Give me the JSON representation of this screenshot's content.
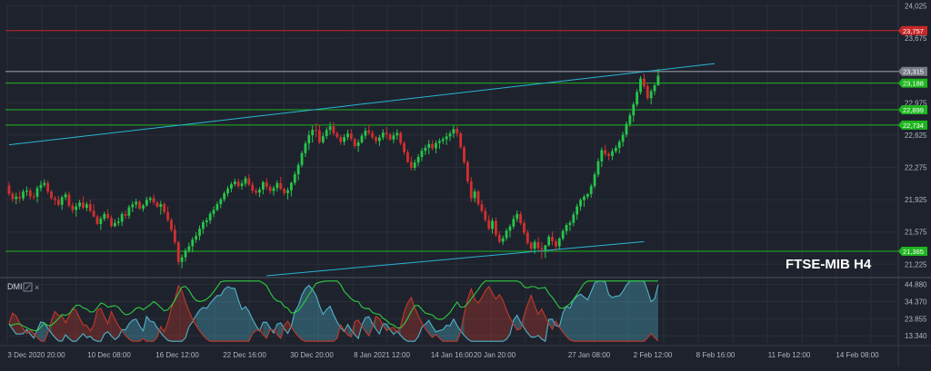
{
  "symbol_label": "FTSE-MIB H4",
  "indicator_label": "DMI",
  "colors": {
    "background": "#1e222d",
    "grid": "#2a2e39",
    "bull": "#26c64a",
    "bear": "#d32f2f",
    "trendline": "#29b6d4",
    "support_resistance": "#1fb51f",
    "resistance_red": "#c62828",
    "dmi_plus": "#4fb3c8",
    "dmi_minus": "#c0392b",
    "adx": "#2ecc40"
  },
  "chart_data": [
    {
      "type": "candlestick",
      "title": "FTSE-MIB H4",
      "x_tick_labels": [
        "3 Dec 2020 20:00",
        "10 Dec 08:00",
        "16 Dec 12:00",
        "22 Dec 16:00",
        "30 Dec 20:00",
        "8 Jan 2021 12:00",
        "14 Jan 16:00",
        "20 Jan 20:00",
        "27 Jan 08:00",
        "2 Feb 12:00",
        "8 Feb 16:00",
        "11 Feb 12:00",
        "14 Feb 08:00"
      ],
      "y_tick_labels": [
        "24,025",
        "23,675",
        "22,975",
        "22,625",
        "22,275",
        "21,925",
        "21,575",
        "21,225"
      ],
      "ylim": [
        21100,
        24050
      ],
      "horizontal_levels": [
        {
          "label": "23,757",
          "value": 23757,
          "color": "red"
        },
        {
          "label": "23,315",
          "value": 23315,
          "color": "grey"
        },
        {
          "label": "23,188",
          "value": 23188,
          "color": "green"
        },
        {
          "label": "22,899",
          "value": 22899,
          "color": "green"
        },
        {
          "label": "22,734",
          "value": 22734,
          "color": "green"
        },
        {
          "label": "21,365",
          "value": 21365,
          "color": "green"
        }
      ],
      "trendlines": [
        {
          "from": {
            "candle": 0,
            "value": 22520
          },
          "to": {
            "candle": 200,
            "value": 23400
          }
        },
        {
          "from": {
            "candle": 73,
            "value": 21100
          },
          "to": {
            "candle": 180,
            "value": 21470
          }
        }
      ],
      "ohlc": [
        [
          22078,
          22118,
          21965,
          21988
        ],
        [
          21988,
          22012,
          21895,
          21932
        ],
        [
          21932,
          22000,
          21876,
          21957
        ],
        [
          21957,
          22018,
          21892,
          21939
        ],
        [
          21939,
          22037,
          21914,
          22011
        ],
        [
          22011,
          22069,
          21964,
          22024
        ],
        [
          22024,
          22050,
          21929,
          21960
        ],
        [
          21960,
          21999,
          21927,
          21957
        ],
        [
          21957,
          22076,
          21894,
          22050
        ],
        [
          22050,
          22129,
          22014,
          22085
        ],
        [
          22085,
          22145,
          22060,
          22106
        ],
        [
          22106,
          22135,
          21985,
          22012
        ],
        [
          22012,
          22029,
          21923,
          21941
        ],
        [
          21941,
          21965,
          21868,
          21924
        ],
        [
          21924,
          21967,
          21853,
          21869
        ],
        [
          21869,
          21971,
          21814,
          21950
        ],
        [
          21950,
          22007,
          21919,
          21982
        ],
        [
          21982,
          22011,
          21840,
          21860
        ],
        [
          21860,
          21896,
          21774,
          21813
        ],
        [
          21813,
          21888,
          21741,
          21853
        ],
        [
          21853,
          21923,
          21819,
          21893
        ],
        [
          21893,
          21960,
          21819,
          21837
        ],
        [
          21837,
          21902,
          21801,
          21875
        ],
        [
          21875,
          21926,
          21785,
          21805
        ],
        [
          21805,
          21874,
          21734,
          21742
        ],
        [
          21742,
          21761,
          21648,
          21661
        ],
        [
          21661,
          21744,
          21596,
          21718
        ],
        [
          21718,
          21796,
          21691,
          21770
        ],
        [
          21770,
          21822,
          21707,
          21727
        ],
        [
          21727,
          21754,
          21622,
          21638
        ],
        [
          21638,
          21713,
          21626,
          21672
        ],
        [
          21672,
          21732,
          21640,
          21687
        ],
        [
          21687,
          21793,
          21640,
          21768
        ],
        [
          21768,
          21808,
          21713,
          21752
        ],
        [
          21752,
          21868,
          21717,
          21843
        ],
        [
          21843,
          21908,
          21790,
          21873
        ],
        [
          21873,
          21935,
          21833,
          21902
        ],
        [
          21902,
          21917,
          21815,
          21827
        ],
        [
          21827,
          21880,
          21796,
          21863
        ],
        [
          21863,
          21955,
          21847,
          21922
        ],
        [
          21922,
          21961,
          21890,
          21941
        ],
        [
          21941,
          21983,
          21869,
          21897
        ],
        [
          21897,
          21910,
          21839,
          21846
        ],
        [
          21846,
          21912,
          21763,
          21877
        ],
        [
          21877,
          21899,
          21770,
          21790
        ],
        [
          21790,
          21851,
          21685,
          21704
        ],
        [
          21704,
          21726,
          21576,
          21598
        ],
        [
          21598,
          21652,
          21438,
          21463
        ],
        [
          21463,
          21477,
          21220,
          21250
        ],
        [
          21250,
          21331,
          21183,
          21300
        ],
        [
          21300,
          21400,
          21253,
          21374
        ],
        [
          21374,
          21459,
          21348,
          21420
        ],
        [
          21420,
          21519,
          21357,
          21492
        ],
        [
          21492,
          21571,
          21456,
          21532
        ],
        [
          21532,
          21644,
          21484,
          21610
        ],
        [
          21610,
          21703,
          21553,
          21680
        ],
        [
          21680,
          21730,
          21630,
          21700
        ],
        [
          21700,
          21796,
          21662,
          21772
        ],
        [
          21772,
          21851,
          21736,
          21814
        ],
        [
          21814,
          21903,
          21798,
          21876
        ],
        [
          21876,
          21947,
          21833,
          21929
        ],
        [
          21929,
          22016,
          21902,
          21994
        ],
        [
          21994,
          22075,
          21961,
          22045
        ],
        [
          22045,
          22118,
          22005,
          22093
        ],
        [
          22093,
          22153,
          22069,
          22121
        ],
        [
          22121,
          22152,
          22046,
          22072
        ],
        [
          22072,
          22136,
          22033,
          22100
        ],
        [
          22100,
          22183,
          22066,
          22156
        ],
        [
          22156,
          22200,
          22073,
          22087
        ],
        [
          22087,
          22119,
          21993,
          22022
        ],
        [
          22022,
          22051,
          21972,
          22002
        ],
        [
          22002,
          22059,
          21952,
          22034
        ],
        [
          22034,
          22129,
          21983,
          22115
        ],
        [
          22115,
          22157,
          22031,
          22064
        ],
        [
          22064,
          22089,
          21986,
          22018
        ],
        [
          22018,
          22076,
          21969,
          22051
        ],
        [
          22051,
          22135,
          22012,
          22104
        ],
        [
          22104,
          22172,
          22023,
          22043
        ],
        [
          22043,
          22056,
          21973,
          21996
        ],
        [
          21996,
          22055,
          21928,
          22026
        ],
        [
          22026,
          22120,
          21961,
          22107
        ],
        [
          22107,
          22231,
          22081,
          22200
        ],
        [
          22200,
          22326,
          22132,
          22301
        ],
        [
          22301,
          22452,
          22275,
          22429
        ],
        [
          22429,
          22559,
          22388,
          22535
        ],
        [
          22535,
          22672,
          22463,
          22624
        ],
        [
          22624,
          22725,
          22545,
          22681
        ],
        [
          22681,
          22757,
          22598,
          22676
        ],
        [
          22676,
          22733,
          22528,
          22548
        ],
        [
          22548,
          22653,
          22529,
          22613
        ],
        [
          22613,
          22710,
          22582,
          22680
        ],
        [
          22680,
          22766,
          22630,
          22719
        ],
        [
          22719,
          22766,
          22618,
          22645
        ],
        [
          22645,
          22666,
          22586,
          22603
        ],
        [
          22603,
          22630,
          22517,
          22552
        ],
        [
          22552,
          22636,
          22515,
          22603
        ],
        [
          22603,
          22684,
          22569,
          22642
        ],
        [
          22642,
          22689,
          22560,
          22583
        ],
        [
          22583,
          22597,
          22480,
          22506
        ],
        [
          22506,
          22577,
          22442,
          22546
        ],
        [
          22546,
          22646,
          22531,
          22618
        ],
        [
          22618,
          22706,
          22581,
          22672
        ],
        [
          22672,
          22738,
          22624,
          22649
        ],
        [
          22649,
          22679,
          22581,
          22600
        ],
        [
          22600,
          22617,
          22527,
          22560
        ],
        [
          22560,
          22627,
          22508,
          22600
        ],
        [
          22600,
          22688,
          22570,
          22651
        ],
        [
          22651,
          22713,
          22585,
          22632
        ],
        [
          22632,
          22650,
          22564,
          22577
        ],
        [
          22577,
          22659,
          22537,
          22621
        ],
        [
          22621,
          22689,
          22575,
          22649
        ],
        [
          22649,
          22668,
          22515,
          22538
        ],
        [
          22538,
          22558,
          22411,
          22438
        ],
        [
          22438,
          22468,
          22321,
          22335
        ],
        [
          22335,
          22393,
          22238,
          22270
        ],
        [
          22270,
          22360,
          22241,
          22327
        ],
        [
          22327,
          22419,
          22286,
          22388
        ],
        [
          22388,
          22485,
          22343,
          22455
        ],
        [
          22455,
          22519,
          22408,
          22487
        ],
        [
          22487,
          22573,
          22416,
          22528
        ],
        [
          22528,
          22572,
          22460,
          22481
        ],
        [
          22481,
          22567,
          22427,
          22540
        ],
        [
          22540,
          22590,
          22475,
          22561
        ],
        [
          22561,
          22606,
          22528,
          22580
        ],
        [
          22580,
          22650,
          22518,
          22611
        ],
        [
          22611,
          22670,
          22560,
          22642
        ],
        [
          22642,
          22729,
          22594,
          22691
        ],
        [
          22691,
          22719,
          22606,
          22645
        ],
        [
          22645,
          22661,
          22475,
          22493
        ],
        [
          22493,
          22513,
          22306,
          22331
        ],
        [
          22331,
          22350,
          22098,
          22124
        ],
        [
          22124,
          22170,
          21900,
          21941
        ],
        [
          21941,
          22043,
          21895,
          22013
        ],
        [
          22013,
          22031,
          21855,
          21875
        ],
        [
          21875,
          21920,
          21782,
          21803
        ],
        [
          21803,
          21842,
          21682,
          21705
        ],
        [
          21705,
          21754,
          21591,
          21610
        ],
        [
          21610,
          21724,
          21558,
          21693
        ],
        [
          21693,
          21733,
          21522,
          21544
        ],
        [
          21544,
          21584,
          21452,
          21469
        ],
        [
          21469,
          21536,
          21435,
          21508
        ],
        [
          21508,
          21614,
          21479,
          21588
        ],
        [
          21588,
          21658,
          21515,
          21634
        ],
        [
          21634,
          21755,
          21606,
          21716
        ],
        [
          21716,
          21806,
          21682,
          21769
        ],
        [
          21769,
          21798,
          21651,
          21670
        ],
        [
          21670,
          21701,
          21543,
          21567
        ],
        [
          21567,
          21599,
          21433,
          21456
        ],
        [
          21456,
          21472,
          21359,
          21393
        ],
        [
          21393,
          21491,
          21341,
          21466
        ],
        [
          21466,
          21519,
          21369,
          21400
        ],
        [
          21400,
          21467,
          21283,
          21383
        ],
        [
          21383,
          21423,
          21293,
          21432
        ],
        [
          21432,
          21544,
          21415,
          21522
        ],
        [
          21522,
          21581,
          21429,
          21474
        ],
        [
          21474,
          21498,
          21366,
          21420
        ],
        [
          21420,
          21517,
          21387,
          21503
        ],
        [
          21503,
          21606,
          21481,
          21585
        ],
        [
          21585,
          21672,
          21544,
          21651
        ],
        [
          21651,
          21699,
          21586,
          21674
        ],
        [
          21674,
          21795,
          21638,
          21764
        ],
        [
          21764,
          21881,
          21707,
          21852
        ],
        [
          21852,
          21942,
          21806,
          21921
        ],
        [
          21921,
          21980,
          21847,
          21957
        ],
        [
          21957,
          21998,
          21930,
          21985
        ],
        [
          21985,
          22097,
          21946,
          22072
        ],
        [
          22072,
          22226,
          22047,
          22198
        ],
        [
          22198,
          22373,
          22169,
          22341
        ],
        [
          22341,
          22491,
          22280,
          22462
        ],
        [
          22462,
          22520,
          22395,
          22421
        ],
        [
          22421,
          22444,
          22350,
          22398
        ],
        [
          22398,
          22479,
          22353,
          22450
        ],
        [
          22450,
          22516,
          22427,
          22486
        ],
        [
          22486,
          22575,
          22425,
          22552
        ],
        [
          22552,
          22661,
          22501,
          22629
        ],
        [
          22629,
          22774,
          22599,
          22746
        ],
        [
          22746,
          22867,
          22715,
          22838
        ],
        [
          22838,
          22986,
          22767,
          22958
        ],
        [
          22958,
          23123,
          22931,
          23092
        ],
        [
          23092,
          23264,
          23065,
          23238
        ],
        [
          23238,
          23294,
          23129,
          23154
        ],
        [
          23154,
          23197,
          23004,
          23025
        ],
        [
          23025,
          23126,
          22957,
          23101
        ],
        [
          23101,
          23184,
          23059,
          23164
        ],
        [
          23164,
          23342,
          23161,
          23268
        ]
      ]
    },
    {
      "type": "line",
      "title": "DMI",
      "y_tick_labels": [
        "44.880",
        "34.370",
        "23.855",
        "13.340"
      ],
      "ylim": [
        9,
        48
      ],
      "series": [
        {
          "key": "plus_di"
        },
        {
          "key": "minus_di"
        },
        {
          "key": "adx"
        }
      ]
    }
  ]
}
